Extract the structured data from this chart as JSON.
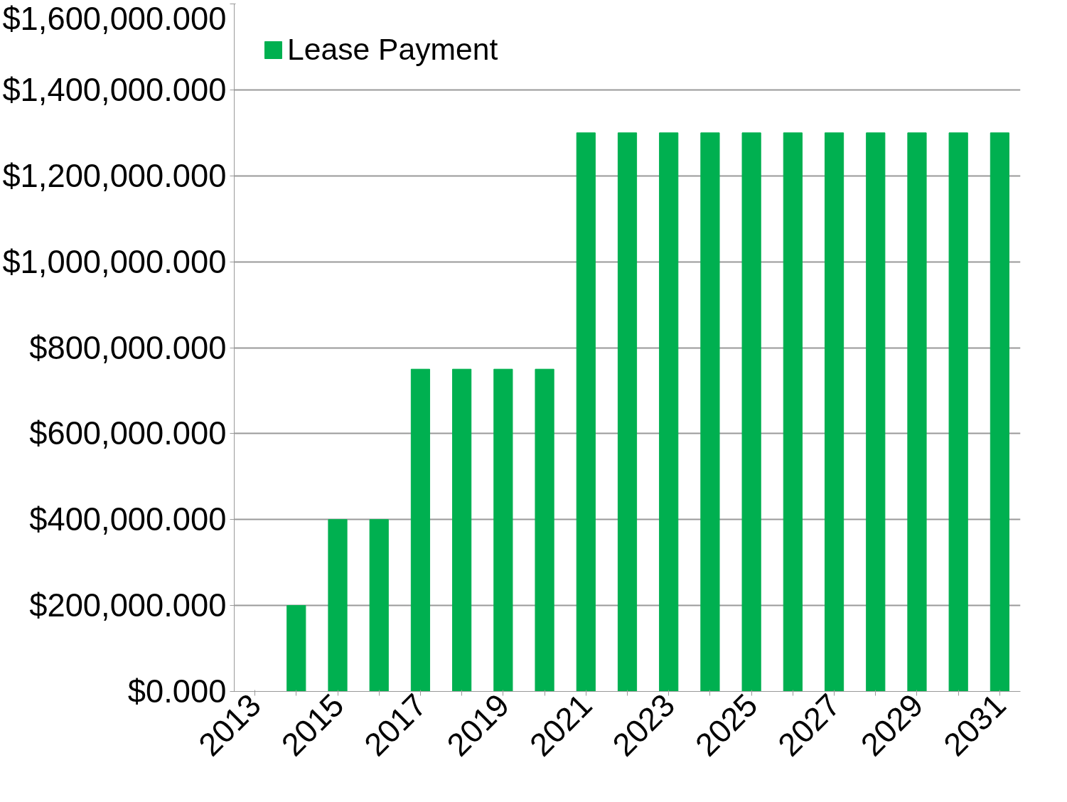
{
  "chart_data": {
    "type": "bar",
    "categories": [
      "2013",
      null,
      "2015",
      null,
      "2017",
      null,
      "2019",
      null,
      "2021",
      null,
      "2023",
      null,
      "2025",
      null,
      "2027",
      null,
      "2029",
      null,
      "2031"
    ],
    "series": [
      {
        "name": "Lease Payment",
        "color": "#00b050",
        "values": [
          0,
          200000,
          400000,
          400000,
          750000,
          750000,
          750000,
          750000,
          1300000,
          1300000,
          1300000,
          1300000,
          1300000,
          1300000,
          1300000,
          1300000,
          1300000,
          1300000,
          1300000
        ]
      }
    ],
    "ylim": [
      0,
      1600000
    ],
    "yticks": [
      {
        "value": 0,
        "label": "$0.000"
      },
      {
        "value": 200000,
        "label": "$200,000.000"
      },
      {
        "value": 400000,
        "label": "$400,000.000"
      },
      {
        "value": 600000,
        "label": "$600,000.000"
      },
      {
        "value": 800000,
        "label": "$800,000.000"
      },
      {
        "value": 1000000,
        "label": "$1,000,000.000"
      },
      {
        "value": 1200000,
        "label": "$1,200,000.000"
      },
      {
        "value": 1400000,
        "label": "$1,400,000.000"
      },
      {
        "value": 1600000,
        "label": "$1,600,000.000"
      }
    ],
    "grid": "y",
    "legend": "top left"
  }
}
